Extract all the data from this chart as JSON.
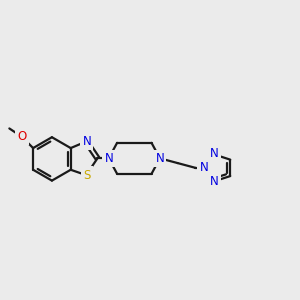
{
  "background_color": "#ebebeb",
  "bond_color": "#1a1a1a",
  "atom_colors": {
    "N": "#0000e0",
    "S": "#c8a800",
    "O": "#dd0000",
    "C": "#1a1a1a"
  },
  "bond_width": 1.6,
  "font_size_atom": 8.5,
  "fig_size": [
    3.0,
    3.0
  ],
  "dpi": 100
}
